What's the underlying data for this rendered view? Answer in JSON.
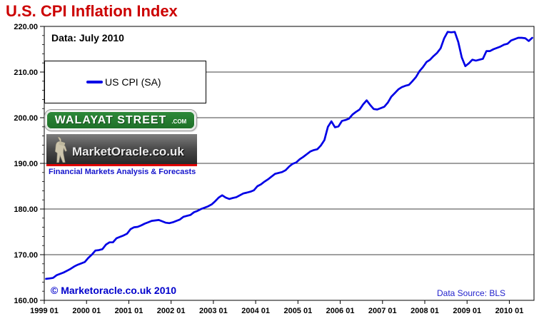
{
  "labels": {
    "data_asof": "Data: July 2010",
    "copyright": "© Marketoracle.co.uk 2010",
    "data_source": "Data Source: BLS"
  },
  "logos": {
    "walayat_text": "WALAYAT STREET",
    "walayat_suffix": ".COM",
    "marketoracle_text": "MarketOracle.co.uk",
    "tagline": "Financial Markets Analysis & Forecasts"
  },
  "colors": {
    "title_red": "#CC0000",
    "line_blue": "#0000E6",
    "copyright_blue": "#0000CC",
    "source_blue": "#2222CC",
    "sign_green": "#237A2E",
    "stripe_red": "#E00000"
  },
  "chart_data": {
    "type": "line",
    "title": "U.S. CPI Inflation Index",
    "xlabel": "",
    "ylabel": "",
    "x_unit": "month",
    "x_start": "1999-01",
    "x_end": "2010-07",
    "x_tick_labels": [
      "1999 01",
      "2000 01",
      "2001 01",
      "2002 01",
      "2003 01",
      "2004 01",
      "2005 01",
      "2006 01",
      "2007 01",
      "2008 01",
      "2009 01",
      "2010 01"
    ],
    "ylim": [
      160,
      220
    ],
    "y_major_step": 10,
    "y_minor_step": 2,
    "y_tick_decimals": 2,
    "grid": "horizontal-major",
    "legend_position": "upper-left-inside",
    "series": [
      {
        "name": "US CPI (SA)",
        "color": "#0000E6",
        "values": [
          164.7,
          164.8,
          164.9,
          165.5,
          165.8,
          166.1,
          166.5,
          166.9,
          167.4,
          167.8,
          168.1,
          168.4,
          169.3,
          170.0,
          170.9,
          171.0,
          171.2,
          172.2,
          172.7,
          172.7,
          173.6,
          173.9,
          174.2,
          174.6,
          175.6,
          176.0,
          176.1,
          176.4,
          176.8,
          177.1,
          177.4,
          177.5,
          177.6,
          177.3,
          177.0,
          176.9,
          177.1,
          177.4,
          177.7,
          178.3,
          178.5,
          178.7,
          179.3,
          179.6,
          180.0,
          180.3,
          180.6,
          181.0,
          181.7,
          182.5,
          183.0,
          182.5,
          182.2,
          182.4,
          182.6,
          183.0,
          183.4,
          183.6,
          183.8,
          184.1,
          185.0,
          185.4,
          186.0,
          186.5,
          187.1,
          187.7,
          187.9,
          188.1,
          188.5,
          189.3,
          189.9,
          190.2,
          190.9,
          191.4,
          192.0,
          192.6,
          192.9,
          193.1,
          193.9,
          195.1,
          198.0,
          199.2,
          197.9,
          198.1,
          199.3,
          199.5,
          199.8,
          200.7,
          201.3,
          201.8,
          202.9,
          203.8,
          202.8,
          201.9,
          201.8,
          202.1,
          202.4,
          203.3,
          204.6,
          205.4,
          206.2,
          206.7,
          207.0,
          207.2,
          208.0,
          208.9,
          210.2,
          211.1,
          212.2,
          212.7,
          213.5,
          214.2,
          215.2,
          217.4,
          218.8,
          218.7,
          218.8,
          216.6,
          213.2,
          211.3,
          211.9,
          212.7,
          212.5,
          212.7,
          212.9,
          214.6,
          214.6,
          215.0,
          215.3,
          215.6,
          216.0,
          216.2,
          216.9,
          217.2,
          217.5,
          217.5,
          217.4,
          216.8,
          217.5
        ]
      }
    ]
  }
}
